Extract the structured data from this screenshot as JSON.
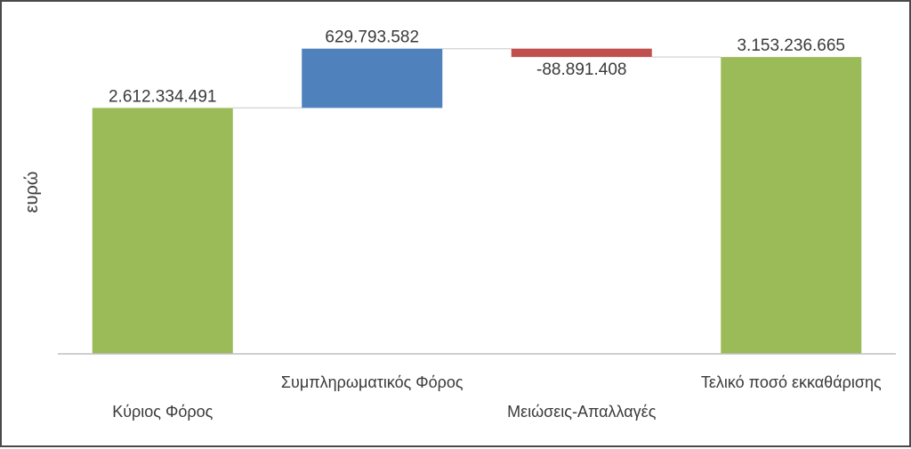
{
  "chart_data": {
    "type": "bar",
    "subtype": "waterfall",
    "ylabel": "ευρώ",
    "ylim": [
      0,
      3400000000
    ],
    "grid": false,
    "legend": "none",
    "categories": [
      "Κύριος Φόρος",
      "Συμπληρωματικός Φόρος",
      "Μειώσεις-Απαλλαγές",
      "Τελικό ποσό εκκαθάρισης"
    ],
    "values": [
      2612334491,
      629793582,
      -88891408,
      3153236665
    ],
    "data_labels": [
      "2.612.334.491",
      "629.793.582",
      "-88.891.408",
      "3.153.236.665"
    ],
    "bar_kinds": [
      "total",
      "increase",
      "decrease",
      "total"
    ],
    "colors": {
      "increase": "#4F81BD",
      "decrease": "#C0504D",
      "total": "#9BBB59",
      "connector": "#D9D9D9",
      "axis": "#BFBFBF"
    }
  }
}
